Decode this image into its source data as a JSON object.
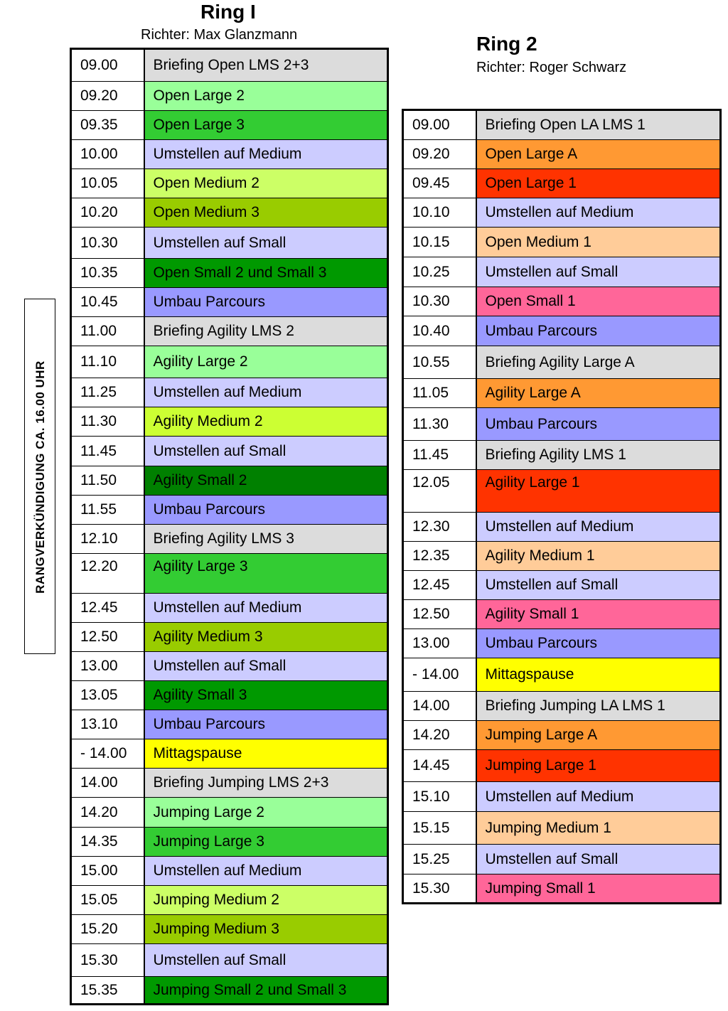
{
  "ring1": {
    "title": "Ring I",
    "judge": "Richter: Max Glanzmann",
    "rows": [
      {
        "time": "09.00",
        "event": "Briefing Open LMS 2+3",
        "color": "#dcdcdc",
        "h": 46
      },
      {
        "time": "09.20",
        "event": "Open Large 2",
        "color": "#99ff99",
        "h": 41
      },
      {
        "time": "09.35",
        "event": "Open Large 3",
        "color": "#33cc33",
        "h": 41
      },
      {
        "time": "10.00",
        "event": "Umstellen auf Medium",
        "color": "#ccccff",
        "h": 41
      },
      {
        "time": "10.05",
        "event": "Open Medium 2",
        "color": "#ccff66",
        "h": 41
      },
      {
        "time": "10.20",
        "event": "Open Medium 3",
        "color": "#99cc00",
        "h": 41
      },
      {
        "time": "10.30",
        "event": "Umstellen auf Small",
        "color": "#ccccff",
        "h": 44
      },
      {
        "time": "10.35",
        "event": "Open Small 2 und Small 3",
        "color": "#009900",
        "h": 41
      },
      {
        "time": "10.45",
        "event": "Umbau Parcours",
        "color": "#9999ff",
        "h": 41
      },
      {
        "time": "11.00",
        "event": "Briefing Agility LMS 2",
        "color": "#dcdcdc",
        "h": 41
      },
      {
        "time": "11.10",
        "event": "Agility Large 2",
        "color": "#99ff99",
        "h": 45
      },
      {
        "time": "11.25",
        "event": "Umstellen auf Medium",
        "color": "#ccccff",
        "h": 41
      },
      {
        "time": "11.30",
        "event": "Agility Medium 2",
        "color": "#ccff33",
        "h": 41
      },
      {
        "time": "11.45",
        "event": "Umstellen auf Small",
        "color": "#ccccff",
        "h": 42
      },
      {
        "time": "11.50",
        "event": "Agility Small 2",
        "color": "#008000",
        "h": 41
      },
      {
        "time": "11.55",
        "event": "Umbau Parcours",
        "color": "#9999ff",
        "h": 41
      },
      {
        "time": "12.10",
        "event": "Briefing Agility LMS 3",
        "color": "#dcdcdc",
        "h": 41
      },
      {
        "time": "12.20",
        "event": "Agility Large 3",
        "color": "#33cc33",
        "h": 56,
        "tall": true
      },
      {
        "time": "12.45",
        "event": "Umstellen auf Medium",
        "color": "#ccccff",
        "h": 41
      },
      {
        "time": "12.50",
        "event": "Agility Medium 3",
        "color": "#99cc00",
        "h": 41
      },
      {
        "time": "13.00",
        "event": "Umstellen auf Small",
        "color": "#ccccff",
        "h": 41
      },
      {
        "time": "13.05",
        "event": "Agility Small 3",
        "color": "#009900",
        "h": 41
      },
      {
        "time": "13.10",
        "event": "Umbau Parcours",
        "color": "#9999ff",
        "h": 41
      },
      {
        "time": "- 14.00",
        "event": "Mittagspause",
        "color": "#ffff00",
        "h": 41
      },
      {
        "time": "14.00",
        "event": "Briefing Jumping LMS 2+3",
        "color": "#dcdcdc",
        "h": 41
      },
      {
        "time": "14.20",
        "event": "Jumping Large 2",
        "color": "#99ff99",
        "h": 42
      },
      {
        "time": "14.35",
        "event": "Jumping Large 3",
        "color": "#33cc33",
        "h": 41
      },
      {
        "time": "15.00",
        "event": "Umstellen auf Medium",
        "color": "#ccccff",
        "h": 41
      },
      {
        "time": "15.05",
        "event": "Jumping Medium 2",
        "color": "#ccff66",
        "h": 41
      },
      {
        "time": "15.20",
        "event": "Jumping Medium 3",
        "color": "#99cc00",
        "h": 41
      },
      {
        "time": "15.30",
        "event": "Umstellen auf Small",
        "color": "#ccccff",
        "h": 46
      },
      {
        "time": "15.35",
        "event": "Jumping Small 2 und Small 3",
        "color": "#009900",
        "h": 39
      }
    ]
  },
  "ring2": {
    "title": "Ring 2",
    "judge": "Richter: Roger Schwarz",
    "rows": [
      {
        "time": "09.00",
        "event": "Briefing Open LA  LMS 1",
        "color": "#dcdcdc",
        "h": 42
      },
      {
        "time": "09.20",
        "event": "Open Large A",
        "color": "#ff9933",
        "h": 41
      },
      {
        "time": "09.45",
        "event": "Open Large 1",
        "color": "#ff3300",
        "h": 41
      },
      {
        "time": "10.10",
        "event": "Umstellen auf Medium",
        "color": "#ccccff",
        "h": 41
      },
      {
        "time": "10.15",
        "event": "Open Medium 1",
        "color": "#ffcc99",
        "h": 42
      },
      {
        "time": "10.25",
        "event": "Umstellen auf Small",
        "color": "#ccccff",
        "h": 42
      },
      {
        "time": "10.30",
        "event": "Open Small 1",
        "color": "#ff6699",
        "h": 41
      },
      {
        "time": "10.40",
        "event": "Umbau Parcours",
        "color": "#9999ff",
        "h": 42
      },
      {
        "time": "10.55",
        "event": "Briefing Agility Large A",
        "color": "#dcdcdc",
        "h": 46
      },
      {
        "time": "11.05",
        "event": "Agility Large A",
        "color": "#ff9933",
        "h": 41
      },
      {
        "time": "11.30",
        "event": "Umbau Parcours",
        "color": "#9999ff",
        "h": 46
      },
      {
        "time": "11.45",
        "event": "Briefing Agility LMS 1",
        "color": "#dcdcdc",
        "h": 41
      },
      {
        "time": "12.05",
        "event": "Agility Large 1",
        "color": "#ff3300",
        "h": 60,
        "tall": true
      },
      {
        "time": "12.30",
        "event": "Umstellen auf Medium",
        "color": "#ccccff",
        "h": 41
      },
      {
        "time": "12.35",
        "event": "Agility Medium 1",
        "color": "#ffcc99",
        "h": 41
      },
      {
        "time": "12.45",
        "event": "Umstellen auf Small",
        "color": "#ccccff",
        "h": 41
      },
      {
        "time": "12.50",
        "event": "Agility Small 1",
        "color": "#ff6699",
        "h": 41
      },
      {
        "time": "13.00",
        "event": "Umbau Parcours",
        "color": "#9999ff",
        "h": 41
      },
      {
        "time": "- 14.00",
        "event": "Mittagspause",
        "color": "#ffff00",
        "h": 47
      },
      {
        "time": "14.00",
        "event": "Briefing Jumping LA LMS 1",
        "color": "#dcdcdc",
        "h": 41
      },
      {
        "time": "14.20",
        "event": "Jumping Large A",
        "color": "#ff9933",
        "h": 41
      },
      {
        "time": "14.45",
        "event": "Jumping Large 1",
        "color": "#ff3300",
        "h": 45
      },
      {
        "time": "15.10",
        "event": "Umstellen auf Medium",
        "color": "#ccccff",
        "h": 42
      },
      {
        "time": "15.15",
        "event": "Jumping Medium 1",
        "color": "#ffcc99",
        "h": 46
      },
      {
        "time": "15.25",
        "event": "Umstellen auf Small",
        "color": "#ccccff",
        "h": 42
      },
      {
        "time": "15.30",
        "event": "Jumping Small 1",
        "color": "#ff6699",
        "h": 41
      }
    ]
  },
  "side_note": "RANGVERKÜNDIGUNG CA. 16.00 UHR"
}
